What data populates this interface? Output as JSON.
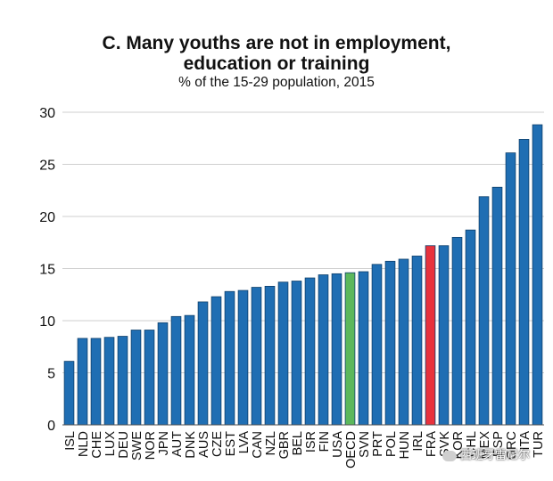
{
  "chart_data": {
    "type": "bar",
    "title_line1": "C. Many youths are not in employment,",
    "title_line2": "education or training",
    "subtitle": "% of the 15-29 population, 2015",
    "xlabel": "",
    "ylabel": "",
    "ylim": [
      0,
      30
    ],
    "yticks": [
      0,
      5,
      10,
      15,
      20,
      25,
      30
    ],
    "grid": true,
    "categories": [
      "ISL",
      "NLD",
      "CHE",
      "LUX",
      "DEU",
      "SWE",
      "NOR",
      "JPN",
      "AUT",
      "DNK",
      "AUS",
      "CZE",
      "EST",
      "LVA",
      "CAN",
      "NZL",
      "GBR",
      "BEL",
      "ISR",
      "FIN",
      "USA",
      "OECD",
      "SVN",
      "PRT",
      "POL",
      "HUN",
      "IRL",
      "FRA",
      "SVK",
      "KOR",
      "CHL",
      "MEX",
      "ESP",
      "GRC",
      "ITA",
      "TUR"
    ],
    "values": [
      6.1,
      8.3,
      8.3,
      8.4,
      8.5,
      9.1,
      9.1,
      9.8,
      10.4,
      10.5,
      11.8,
      12.3,
      12.8,
      12.9,
      13.2,
      13.3,
      13.7,
      13.8,
      14.1,
      14.4,
      14.5,
      14.6,
      14.7,
      15.4,
      15.7,
      15.9,
      16.2,
      17.2,
      17.2,
      18.0,
      18.7,
      21.9,
      22.8,
      26.1,
      27.4,
      28.8
    ],
    "highlights": {
      "OECD": "#5cb85c",
      "FRA": "#e8323c"
    },
    "bar_color": "#1f6eb3",
    "bar_edge_color": "#0d3f6b"
  },
  "watermark": "西班牙雷尼尔"
}
